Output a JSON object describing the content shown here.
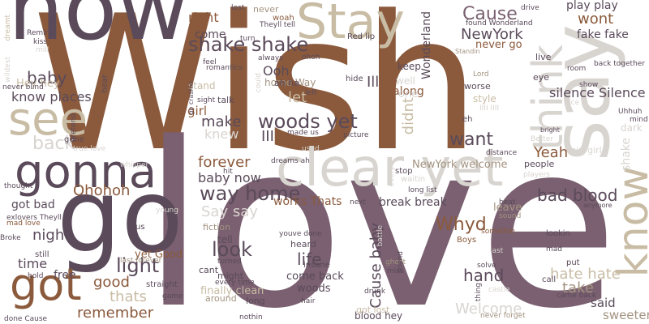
{
  "palette": {
    "background": "#ffffff",
    "rust": "#8b5a3c",
    "plum": "#7a6070",
    "aubergine": "#5a4a5a",
    "beige": "#c8bca4",
    "light_gray": "#d8d4d0",
    "taupe": "#a39380"
  },
  "words": [
    {
      "text": "Wish",
      "color": "#8b5a3c"
    },
    {
      "text": "love",
      "color": "#7a6070"
    },
    {
      "text": "now",
      "color": "#5a4a5a"
    },
    {
      "text": "go",
      "color": "#5a4a5a"
    },
    {
      "text": "say",
      "color": "#d8d4d0"
    },
    {
      "text": "Stay",
      "color": "#c8bca4"
    },
    {
      "text": "clear yet",
      "color": "#d8d4d0"
    },
    {
      "text": "gonna",
      "color": "#5a4a5a"
    },
    {
      "text": "see",
      "color": "#c8bca4"
    },
    {
      "text": "got",
      "color": "#8b5a3c"
    },
    {
      "text": "know",
      "color": "#c8bca4"
    },
    {
      "text": "think",
      "color": "#d8d4d0"
    },
    {
      "text": "shake shake",
      "color": "#5a4a5a"
    },
    {
      "text": "woods yet",
      "color": "#5a4a5a"
    },
    {
      "text": "Cause",
      "color": "#7a6070"
    },
    {
      "text": "NewYork",
      "color": "#5a4a5a"
    },
    {
      "text": "want",
      "color": "#5a4a5a"
    },
    {
      "text": "back",
      "color": "#d8d4d0"
    },
    {
      "text": "way home",
      "color": "#5a4a5a"
    },
    {
      "text": "light",
      "color": "#5a4a5a"
    },
    {
      "text": "bad blood",
      "color": "#5a4a5a"
    },
    {
      "text": "Whyd",
      "color": "#8b5a3c"
    },
    {
      "text": "look",
      "color": "#5a4a5a"
    },
    {
      "text": "life",
      "color": "#5a4a5a"
    },
    {
      "text": "hand",
      "color": "#5a4a5a"
    },
    {
      "text": "baby",
      "color": "#5a4a5a"
    },
    {
      "text": "Ohohoh",
      "color": "#8b5a3c"
    },
    {
      "text": "Say say",
      "color": "#d8d4d0"
    },
    {
      "text": "Yeah",
      "color": "#8b5a3c"
    },
    {
      "text": "hate hate",
      "color": "#c8bca4"
    },
    {
      "text": "take",
      "color": "#a39380"
    },
    {
      "text": "Welcome",
      "color": "#d8d4d0"
    },
    {
      "text": "remember",
      "color": "#8b5a3c"
    },
    {
      "text": "thats",
      "color": "#c8bca4"
    },
    {
      "text": "make",
      "color": "#5a4a5a"
    },
    {
      "text": "night",
      "color": "#5a4a5a"
    },
    {
      "text": "good",
      "color": "#8b5a3c"
    },
    {
      "text": "time",
      "color": "#5a4a5a"
    },
    {
      "text": "let",
      "color": "#c8bca4"
    },
    {
      "text": "Ooh",
      "color": "#5a4a5a"
    },
    {
      "text": "III",
      "color": "#5a4a5a"
    },
    {
      "text": "Ill",
      "color": "#5a4a5a"
    },
    {
      "text": "didnt",
      "color": "#c8bca4"
    },
    {
      "text": "Cause baby",
      "color": "#5a4a5a"
    },
    {
      "text": "forever",
      "color": "#8b5a3c"
    },
    {
      "text": "baby now",
      "color": "#5a4a5a"
    },
    {
      "text": "wont",
      "color": "#8b5a3c"
    },
    {
      "text": "right",
      "color": "#8b5a3c"
    },
    {
      "text": "come",
      "color": "#5a4a5a"
    },
    {
      "text": "play play",
      "color": "#5a4a5a"
    },
    {
      "text": "fake fake",
      "color": "#5a4a5a"
    },
    {
      "text": "know places",
      "color": "#5a4a5a"
    },
    {
      "text": "Hey hey",
      "color": "#c8bca4"
    },
    {
      "text": "silence Silence",
      "color": "#5a4a5a"
    },
    {
      "text": "got bad",
      "color": "#5a4a5a"
    },
    {
      "text": "break break",
      "color": "#5a4a5a"
    },
    {
      "text": "works Thats",
      "color": "#8b5a3c"
    },
    {
      "text": "Wonderland",
      "color": "#5a4a5a"
    },
    {
      "text": "said",
      "color": "#5a4a5a"
    },
    {
      "text": "sweeter",
      "color": "#a39380"
    },
    {
      "text": "come back",
      "color": "#5a4a5a"
    },
    {
      "text": "woods",
      "color": "#5a4a5a"
    },
    {
      "text": "Lord",
      "color": "#a39380"
    },
    {
      "text": "knew",
      "color": "#d8d4d0"
    },
    {
      "text": "home Way",
      "color": "#a39380"
    },
    {
      "text": "girl",
      "color": "#8b5a3c"
    },
    {
      "text": "blood hey",
      "color": "#5a4a5a"
    },
    {
      "text": "along",
      "color": "#8b5a3c"
    },
    {
      "text": "free",
      "color": "#5a4a5a"
    },
    {
      "text": "tell",
      "color": "#5a4a5a"
    },
    {
      "text": "keep",
      "color": "#5a4a5a"
    },
    {
      "text": "never go",
      "color": "#8b5a3c"
    },
    {
      "text": "leave",
      "color": "#a39380"
    },
    {
      "text": "NewYork welcome",
      "color": "#a39380"
    },
    {
      "text": "yet Good",
      "color": "#8b5a3c"
    },
    {
      "text": "finally clean",
      "color": "#c8bca4"
    },
    {
      "text": "style",
      "color": "#c8bca4"
    },
    {
      "text": "people",
      "color": "#5a4a5a"
    },
    {
      "text": "eye",
      "color": "#5a4a5a"
    },
    {
      "text": "worse",
      "color": "#5a4a5a"
    },
    {
      "text": "well",
      "color": "#d8d4d0"
    },
    {
      "text": "dark",
      "color": "#d8d4d0"
    },
    {
      "text": "mind",
      "color": "#5a4a5a"
    },
    {
      "text": "shake",
      "color": "#d8d4d0"
    },
    {
      "text": "girl girl",
      "color": "#d8d4d0"
    },
    {
      "text": "straight",
      "color": "#5a4a5a"
    },
    {
      "text": "insane",
      "color": "#5a4a5a"
    },
    {
      "text": "heard",
      "color": "#5a4a5a"
    },
    {
      "text": "might",
      "color": "#5a4a5a"
    },
    {
      "text": "long",
      "color": "#5a4a5a"
    },
    {
      "text": "fiction",
      "color": "#a39380"
    },
    {
      "text": "cant",
      "color": "#5a4a5a"
    },
    {
      "text": "lookin",
      "color": "#5a4a5a"
    },
    {
      "text": "put",
      "color": "#5a4a5a"
    },
    {
      "text": "call",
      "color": "#5a4a5a"
    },
    {
      "text": "found Wonderland",
      "color": "#5a4a5a"
    },
    {
      "text": "back together",
      "color": "#5a4a5a"
    },
    {
      "text": "Boys",
      "color": "#8b5a3c"
    },
    {
      "text": "one",
      "color": "#d8d4d0"
    },
    {
      "text": "ah ha",
      "color": "#5a4a5a"
    },
    {
      "text": "talk",
      "color": "#5a4a5a"
    },
    {
      "text": "woah",
      "color": "#8b5a3c"
    },
    {
      "text": "Red lip",
      "color": "#5a4a5a"
    },
    {
      "text": "Standin",
      "color": "#a39380"
    },
    {
      "text": "dreams ah",
      "color": "#5a4a5a"
    },
    {
      "text": "long list",
      "color": "#5a4a5a"
    },
    {
      "text": "stop",
      "color": "#5a4a5a"
    },
    {
      "text": "waitin",
      "color": "#d8d4d0"
    },
    {
      "text": "exlovers Theyll",
      "color": "#5a4a5a"
    },
    {
      "text": "mad love",
      "color": "#8b5a3c"
    },
    {
      "text": "last forever",
      "color": "#a39380"
    },
    {
      "text": "Broke",
      "color": "#5a4a5a"
    },
    {
      "text": "around",
      "color": "#a39380"
    },
    {
      "text": "got lost",
      "color": "#c8bca4"
    },
    {
      "text": "game",
      "color": "#5a4a5a"
    },
    {
      "text": "done Cause",
      "color": "#5a4a5a"
    },
    {
      "text": "nothin",
      "color": "#5a4a5a"
    },
    {
      "text": "drunk",
      "color": "#5a4a5a"
    },
    {
      "text": "solve",
      "color": "#5a4a5a"
    },
    {
      "text": "never forget",
      "color": "#a39380"
    },
    {
      "text": "came back",
      "color": "#5a4a5a"
    },
    {
      "text": "hair",
      "color": "#5a4a5a"
    },
    {
      "text": "youve done",
      "color": "#5a4a5a"
    },
    {
      "text": "ghost",
      "color": "#a39380"
    },
    {
      "text": "miss",
      "color": "#5a4a5a"
    },
    {
      "text": "friend",
      "color": "#5a4a5a"
    },
    {
      "text": "beat",
      "color": "#5a4a5a"
    },
    {
      "text": "sound",
      "color": "#a39380"
    },
    {
      "text": "somethin",
      "color": "#8b5a3c"
    },
    {
      "text": "last",
      "color": "#d8d4d0"
    },
    {
      "text": "mad",
      "color": "#5a4a5a"
    },
    {
      "text": "thing",
      "color": "#5a4a5a"
    },
    {
      "text": "castle",
      "color": "#d8d4d0"
    },
    {
      "text": "stand",
      "color": "#c8bca4"
    },
    {
      "text": "picture",
      "color": "#5a4a5a"
    },
    {
      "text": "distance",
      "color": "#5a4a5a"
    },
    {
      "text": "used",
      "color": "#d8d4d0"
    },
    {
      "text": "made us",
      "color": "#5a4a5a"
    },
    {
      "text": "Better",
      "color": "#d8d4d0"
    },
    {
      "text": "bright",
      "color": "#5a4a5a"
    },
    {
      "text": "players",
      "color": "#d8d4d0"
    },
    {
      "text": "anymore",
      "color": "#5a4a5a"
    },
    {
      "text": "thought",
      "color": "#5a4a5a"
    },
    {
      "text": "young",
      "color": "#d8d4d0"
    },
    {
      "text": "still",
      "color": "#5a4a5a"
    },
    {
      "text": "hold",
      "color": "#5a4a5a"
    },
    {
      "text": "gone",
      "color": "#5a4a5a"
    },
    {
      "text": "true love",
      "color": "#d8d4d0"
    },
    {
      "text": "whisper",
      "color": "#d8d4d0"
    },
    {
      "text": "every time",
      "color": "#5a4a5a"
    },
    {
      "text": "turned",
      "color": "#5a4a5a"
    },
    {
      "text": "Uhhuh",
      "color": "#5a4a5a"
    },
    {
      "text": "face",
      "color": "#d8d4d0"
    },
    {
      "text": "show",
      "color": "#5a4a5a"
    },
    {
      "text": "room",
      "color": "#5a4a5a"
    },
    {
      "text": "drive",
      "color": "#5a4a5a"
    },
    {
      "text": "live",
      "color": "#5a4a5a"
    },
    {
      "text": "hide",
      "color": "#5a4a5a"
    },
    {
      "text": "left",
      "color": "#5a4a5a"
    },
    {
      "text": "eh",
      "color": "#5a4a5a"
    },
    {
      "text": "IIII IIII",
      "color": "#d8d4d0"
    },
    {
      "text": "ohoh",
      "color": "#5a4a5a"
    },
    {
      "text": "always",
      "color": "#5a4a5a"
    },
    {
      "text": "turn",
      "color": "#5a4a5a"
    },
    {
      "text": "feel",
      "color": "#5a4a5a"
    },
    {
      "text": "Theyll tell",
      "color": "#5a4a5a"
    },
    {
      "text": "lost",
      "color": "#5a4a5a"
    },
    {
      "text": "never",
      "color": "#a39380"
    },
    {
      "text": "Remind",
      "color": "#5a4a5a"
    },
    {
      "text": "kiss",
      "color": "#5a4a5a"
    },
    {
      "text": "mill",
      "color": "#d8d4d0"
    },
    {
      "text": "dreamt",
      "color": "#c8bca4"
    },
    {
      "text": "wildest",
      "color": "#d8d4d0"
    },
    {
      "text": "never blind",
      "color": "#5a4a5a"
    },
    {
      "text": "hear",
      "color": "#5a4a5a"
    },
    {
      "text": "go crashin",
      "color": "#5a4a5a"
    },
    {
      "text": "sight",
      "color": "#5a4a5a"
    },
    {
      "text": "romantics",
      "color": "#5a4a5a"
    },
    {
      "text": "pretend",
      "color": "#5a4a5a"
    },
    {
      "text": "could",
      "color": "#d8d4d0"
    },
    {
      "text": "next",
      "color": "#5a4a5a"
    },
    {
      "text": "us",
      "color": "#5a4a5a"
    },
    {
      "text": "hit",
      "color": "#5a4a5a"
    },
    {
      "text": "battle",
      "color": "#d8d4d0"
    },
    {
      "text": "every",
      "color": "#d8d4d0"
    }
  ]
}
